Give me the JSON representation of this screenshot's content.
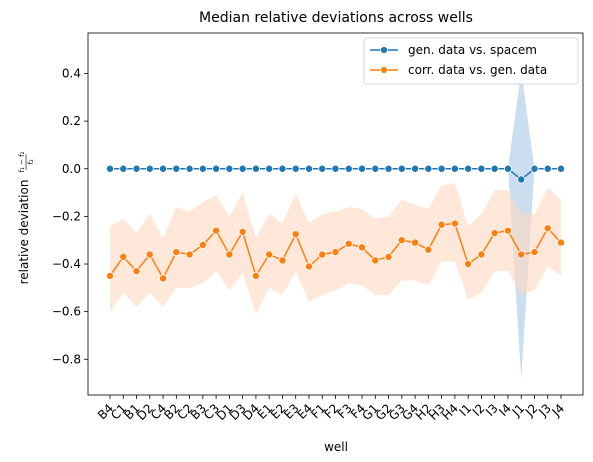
{
  "chart_data": {
    "type": "line",
    "title": "Median relative deviations across wells",
    "xlabel": "well",
    "ylabel": "relative deviation",
    "ylabel_fraction": {
      "numerator": "f₁ − f₂",
      "denominator": "f₂"
    },
    "ylim": [
      -0.95,
      0.57
    ],
    "yticks": [
      0.4,
      0.2,
      0.0,
      -0.2,
      -0.4,
      -0.6,
      -0.8
    ],
    "ytick_labels": [
      "0.4",
      "0.2",
      "0.0",
      "−0.2",
      "−0.4",
      "−0.6",
      "−0.8"
    ],
    "grid": false,
    "legend_position": "top-right",
    "categories": [
      "B4",
      "C1",
      "B1",
      "D2",
      "C4",
      "B2",
      "C2",
      "B3",
      "C3",
      "D1",
      "D3",
      "D4",
      "E1",
      "E2",
      "E3",
      "E4",
      "F1",
      "F2",
      "F3",
      "F4",
      "G1",
      "G2",
      "G3",
      "G4",
      "H2",
      "H3",
      "H4",
      "I1",
      "I2",
      "I3",
      "I4",
      "J1",
      "J2",
      "J3",
      "J4"
    ],
    "series": [
      {
        "name": "gen. data vs. spacem",
        "color": "#1f77b4",
        "band_color": "#a6c8e4",
        "values": [
          0,
          0,
          0,
          0,
          0,
          0,
          0,
          0,
          0,
          0,
          0,
          0,
          0,
          0,
          0,
          0,
          0,
          0,
          0,
          0,
          0,
          0,
          0,
          0,
          0,
          0,
          0,
          0,
          0,
          0,
          0,
          -0.045,
          0,
          0,
          0
        ],
        "lower": [
          0,
          0,
          0,
          0,
          0,
          0,
          0,
          0,
          0,
          0,
          0,
          0,
          0,
          0,
          0,
          0,
          0,
          0,
          0,
          0,
          0,
          0,
          0,
          0,
          0,
          0,
          0,
          0,
          0,
          0,
          0,
          -0.88,
          0,
          0,
          0
        ],
        "upper": [
          0,
          0,
          0,
          0,
          0,
          0,
          0,
          0,
          0,
          0,
          0,
          0,
          0,
          0,
          0,
          0,
          0,
          0,
          0,
          0,
          0,
          0,
          0,
          0,
          0,
          0,
          0,
          0,
          0,
          0,
          0,
          0.41,
          0,
          0,
          0
        ]
      },
      {
        "name": "corr. data vs. gen. data",
        "color": "#ff7f0e",
        "band_color": "#ffd9bf",
        "values": [
          -0.45,
          -0.37,
          -0.43,
          -0.36,
          -0.46,
          -0.35,
          -0.36,
          -0.32,
          -0.26,
          -0.36,
          -0.265,
          -0.45,
          -0.36,
          -0.385,
          -0.275,
          -0.41,
          -0.36,
          -0.35,
          -0.315,
          -0.33,
          -0.385,
          -0.37,
          -0.3,
          -0.31,
          -0.34,
          -0.235,
          -0.23,
          -0.4,
          -0.36,
          -0.27,
          -0.26,
          -0.36,
          -0.35,
          -0.25,
          -0.31
        ],
        "lower": [
          -0.6,
          -0.52,
          -0.58,
          -0.52,
          -0.58,
          -0.5,
          -0.5,
          -0.48,
          -0.43,
          -0.51,
          -0.44,
          -0.61,
          -0.5,
          -0.53,
          -0.43,
          -0.56,
          -0.53,
          -0.51,
          -0.48,
          -0.49,
          -0.53,
          -0.53,
          -0.47,
          -0.47,
          -0.49,
          -0.39,
          -0.39,
          -0.55,
          -0.52,
          -0.43,
          -0.43,
          -0.53,
          -0.51,
          -0.41,
          -0.45
        ],
        "upper": [
          -0.24,
          -0.21,
          -0.27,
          -0.19,
          -0.29,
          -0.16,
          -0.18,
          -0.14,
          -0.11,
          -0.2,
          -0.1,
          -0.29,
          -0.19,
          -0.23,
          -0.1,
          -0.23,
          -0.19,
          -0.18,
          -0.16,
          -0.17,
          -0.21,
          -0.2,
          -0.13,
          -0.15,
          -0.17,
          -0.07,
          -0.06,
          -0.24,
          -0.19,
          -0.09,
          -0.09,
          -0.19,
          -0.19,
          -0.08,
          -0.13
        ]
      }
    ]
  }
}
